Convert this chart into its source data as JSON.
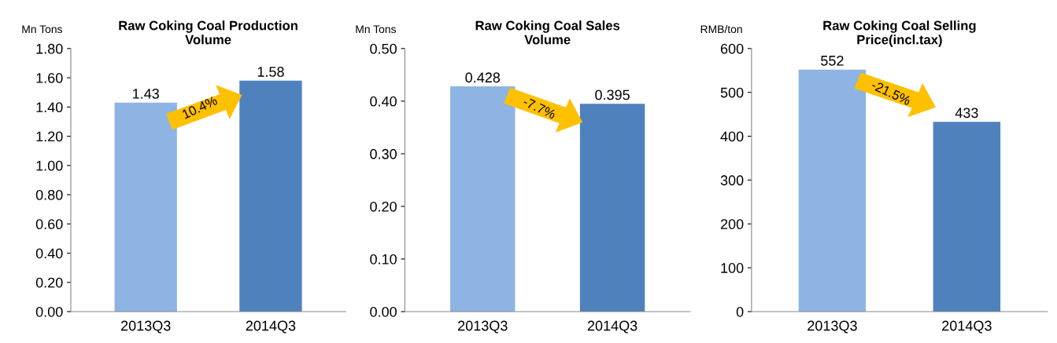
{
  "chart_data": [
    {
      "type": "bar",
      "title": "Raw Coking Coal Production\nVolume",
      "ylabel": "Mn Tons",
      "categories": [
        "2013Q3",
        "2014Q3"
      ],
      "values": [
        1.43,
        1.58
      ],
      "colors": [
        "#8eb4e3",
        "#4f81bd"
      ],
      "ylim": [
        0,
        1.8
      ],
      "yticks": [
        {
          "value": 0,
          "label": "0.00"
        },
        {
          "value": 0.2,
          "label": "0.20"
        },
        {
          "value": 0.4,
          "label": "0.40"
        },
        {
          "value": 0.6,
          "label": "0.60"
        },
        {
          "value": 0.8,
          "label": "0.80"
        },
        {
          "value": 1.0,
          "label": "1.00"
        },
        {
          "value": 1.2,
          "label": "1.20"
        },
        {
          "value": 1.4,
          "label": "1.40"
        },
        {
          "value": 1.6,
          "label": "1.60"
        },
        {
          "value": 1.8,
          "label": "1.80"
        }
      ],
      "data_labels": true,
      "annotations": [
        "10.4%"
      ],
      "grid": false,
      "legend": false
    },
    {
      "type": "bar",
      "title": "Raw Coking Coal Sales\nVolume",
      "ylabel": "Mn Tons",
      "categories": [
        "2013Q3",
        "2014Q3"
      ],
      "values": [
        0.428,
        0.395
      ],
      "colors": [
        "#8eb4e3",
        "#4f81bd"
      ],
      "ylim": [
        0,
        0.5
      ],
      "yticks": [
        {
          "value": 0,
          "label": "0.00"
        },
        {
          "value": 0.1,
          "label": "0.10"
        },
        {
          "value": 0.2,
          "label": "0.20"
        },
        {
          "value": 0.3,
          "label": "0.30"
        },
        {
          "value": 0.4,
          "label": "0.40"
        },
        {
          "value": 0.5,
          "label": "0.50"
        }
      ],
      "data_labels": true,
      "annotations": [
        "-7.7%"
      ],
      "grid": false,
      "legend": false
    },
    {
      "type": "bar",
      "title": "Raw Coking Coal Selling\nPrice(incl.tax)",
      "ylabel": "RMB/ton",
      "categories": [
        "2013Q3",
        "2014Q3"
      ],
      "values": [
        552,
        433
      ],
      "colors": [
        "#8eb4e3",
        "#4f81bd"
      ],
      "ylim": [
        0,
        600
      ],
      "yticks": [
        0,
        100,
        200,
        300,
        400,
        500,
        600
      ],
      "data_labels": true,
      "annotations": [
        "-21.5%"
      ],
      "grid": false,
      "legend": false
    }
  ]
}
